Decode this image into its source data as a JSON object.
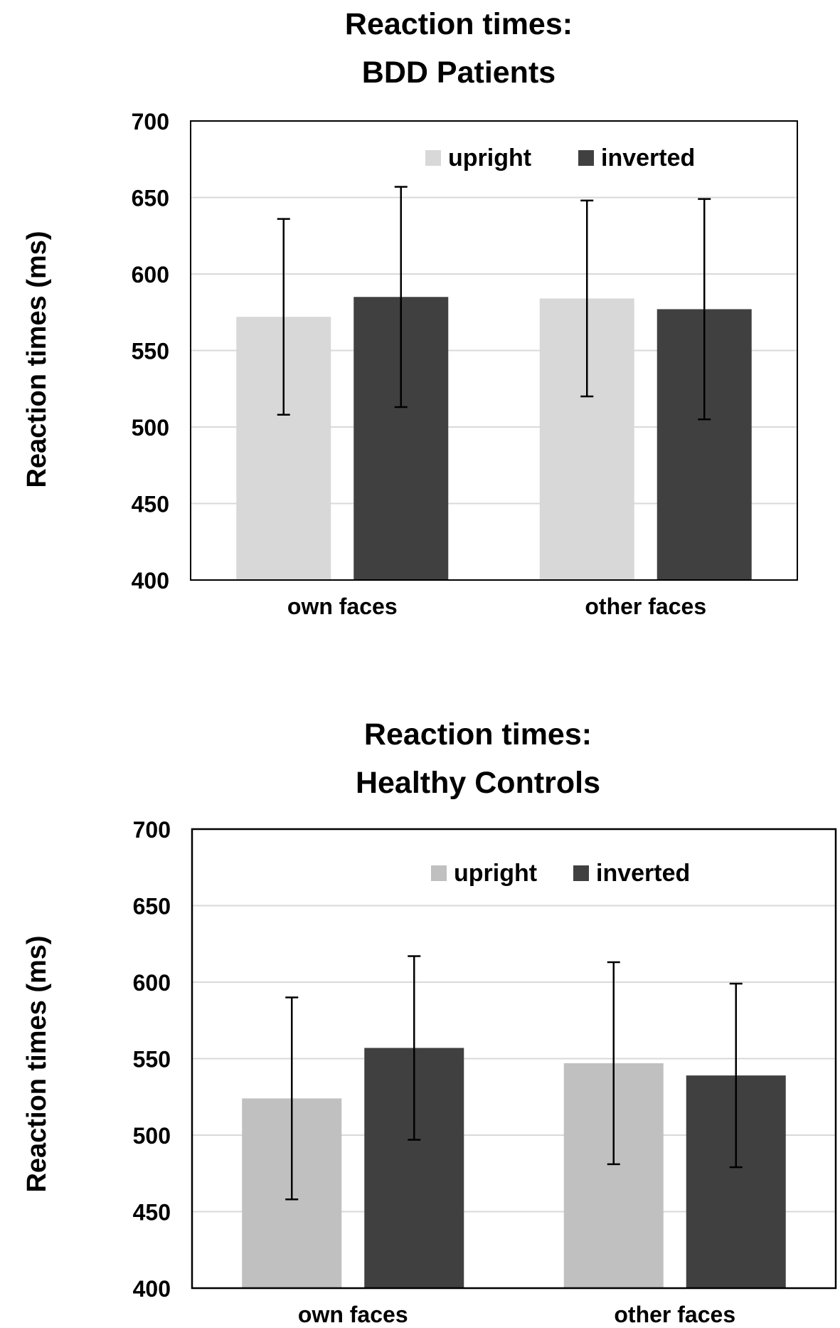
{
  "chart_data": [
    {
      "type": "bar",
      "title": "Reaction times:",
      "subtitle": "BDD Patients",
      "xlabel": "",
      "ylabel": "Reaction times (ms)",
      "ylim": [
        400,
        700
      ],
      "yticks": [
        "400",
        "450",
        "500",
        "550",
        "600",
        "650",
        "700"
      ],
      "categories": [
        "own faces",
        "other faces"
      ],
      "grid": true,
      "legend": "top-right",
      "series": [
        {
          "name": "upright",
          "color": "#d8d8d8",
          "values": [
            572,
            584
          ],
          "err_low": [
            508,
            520
          ],
          "err_high": [
            636,
            648
          ]
        },
        {
          "name": "inverted",
          "color": "#404040",
          "values": [
            585,
            577
          ],
          "err_low": [
            513,
            505
          ],
          "err_high": [
            657,
            649
          ]
        }
      ]
    },
    {
      "type": "bar",
      "title": "Reaction times:",
      "subtitle": "Healthy Controls",
      "xlabel": "",
      "ylabel": "Reaction times (ms)",
      "ylim": [
        400,
        700
      ],
      "yticks": [
        "400",
        "450",
        "500",
        "550",
        "600",
        "650",
        "700"
      ],
      "categories": [
        "own faces",
        "other faces"
      ],
      "grid": true,
      "legend": "top-right",
      "series": [
        {
          "name": "upright",
          "color": "#c0c0c0",
          "values": [
            524,
            547
          ],
          "err_low": [
            458,
            481
          ],
          "err_high": [
            590,
            613
          ]
        },
        {
          "name": "inverted",
          "color": "#404040",
          "values": [
            557,
            539
          ],
          "err_low": [
            497,
            479
          ],
          "err_high": [
            617,
            599
          ]
        }
      ]
    }
  ]
}
